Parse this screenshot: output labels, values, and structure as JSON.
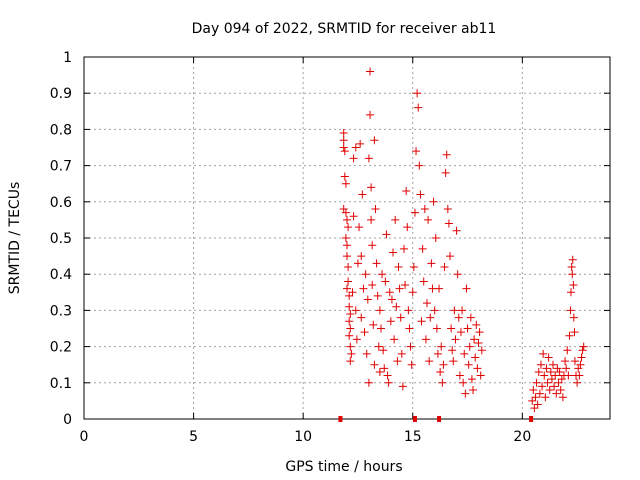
{
  "chart_data": {
    "type": "scatter",
    "title": "Day 094 of 2022, SRMTID for receiver ab11",
    "xlabel": "GPS time / hours",
    "ylabel": "SRMTID / TECUs",
    "xlim": [
      0,
      24
    ],
    "ylim": [
      0,
      1
    ],
    "grid": true,
    "marker": "+",
    "x_ticks": [
      0,
      5,
      10,
      15,
      20
    ],
    "x_tick_labels": [
      "0",
      "5",
      "10",
      "15",
      "20"
    ],
    "y_ticks": [
      0,
      0.1,
      0.2,
      0.3,
      0.4,
      0.5,
      0.6,
      0.7,
      0.8,
      0.9,
      1
    ],
    "y_tick_labels": [
      "0",
      "0.1",
      "0.2",
      "0.3",
      "0.4",
      "0.5",
      "0.6",
      "0.7",
      "0.8",
      "0.9",
      "1"
    ],
    "series": [
      {
        "name": "SRMTID",
        "color": "#e00000",
        "points": [
          [
            11.85,
            0.79
          ],
          [
            11.85,
            0.77
          ],
          [
            11.85,
            0.75
          ],
          [
            11.9,
            0.74
          ],
          [
            11.9,
            0.67
          ],
          [
            11.95,
            0.65
          ],
          [
            11.85,
            0.58
          ],
          [
            11.95,
            0.57
          ],
          [
            12.0,
            0.55
          ],
          [
            12.05,
            0.53
          ],
          [
            11.95,
            0.5
          ],
          [
            12.0,
            0.48
          ],
          [
            12.0,
            0.45
          ],
          [
            12.05,
            0.42
          ],
          [
            12.05,
            0.38
          ],
          [
            12.0,
            0.36
          ],
          [
            12.1,
            0.34
          ],
          [
            12.1,
            0.31
          ],
          [
            12.15,
            0.29
          ],
          [
            12.1,
            0.27
          ],
          [
            12.15,
            0.25
          ],
          [
            12.1,
            0.23
          ],
          [
            12.15,
            0.2
          ],
          [
            12.2,
            0.18
          ],
          [
            12.15,
            0.16
          ],
          [
            12.25,
            0.35
          ],
          [
            12.3,
            0.56
          ],
          [
            12.3,
            0.72
          ],
          [
            12.4,
            0.75
          ],
          [
            12.4,
            0.3
          ],
          [
            12.45,
            0.22
          ],
          [
            12.5,
            0.43
          ],
          [
            12.55,
            0.53
          ],
          [
            12.6,
            0.76
          ],
          [
            12.65,
            0.45
          ],
          [
            12.65,
            0.28
          ],
          [
            12.7,
            0.62
          ],
          [
            12.75,
            0.36
          ],
          [
            12.8,
            0.24
          ],
          [
            12.85,
            0.4
          ],
          [
            12.9,
            0.18
          ],
          [
            12.95,
            0.33
          ],
          [
            13.0,
            0.1
          ],
          [
            13.0,
            0.72
          ],
          [
            13.05,
            0.84
          ],
          [
            13.05,
            0.96
          ],
          [
            13.1,
            0.64
          ],
          [
            13.1,
            0.55
          ],
          [
            13.15,
            0.48
          ],
          [
            13.15,
            0.37
          ],
          [
            13.2,
            0.26
          ],
          [
            13.25,
            0.15
          ],
          [
            13.25,
            0.77
          ],
          [
            13.3,
            0.58
          ],
          [
            13.35,
            0.43
          ],
          [
            13.4,
            0.34
          ],
          [
            13.45,
            0.2
          ],
          [
            13.5,
            0.13
          ],
          [
            13.5,
            0.3
          ],
          [
            13.55,
            0.25
          ],
          [
            13.6,
            0.4
          ],
          [
            13.65,
            0.19
          ],
          [
            13.7,
            0.14
          ],
          [
            13.75,
            0.38
          ],
          [
            13.8,
            0.51
          ],
          [
            13.85,
            0.12
          ],
          [
            13.9,
            0.1
          ],
          [
            13.95,
            0.35
          ],
          [
            14.0,
            0.27
          ],
          [
            14.05,
            0.33
          ],
          [
            14.1,
            0.46
          ],
          [
            14.15,
            0.22
          ],
          [
            14.2,
            0.55
          ],
          [
            14.25,
            0.31
          ],
          [
            14.3,
            0.16
          ],
          [
            14.35,
            0.42
          ],
          [
            14.4,
            0.36
          ],
          [
            14.45,
            0.28
          ],
          [
            14.5,
            0.18
          ],
          [
            14.55,
            0.09
          ],
          [
            14.6,
            0.47
          ],
          [
            14.65,
            0.37
          ],
          [
            14.7,
            0.63
          ],
          [
            14.75,
            0.53
          ],
          [
            14.8,
            0.3
          ],
          [
            14.85,
            0.25
          ],
          [
            14.9,
            0.2
          ],
          [
            14.95,
            0.15
          ],
          [
            15.0,
            0.35
          ],
          [
            15.05,
            0.42
          ],
          [
            15.1,
            0.57
          ],
          [
            15.15,
            0.74
          ],
          [
            15.2,
            0.9
          ],
          [
            15.25,
            0.86
          ],
          [
            15.3,
            0.7
          ],
          [
            15.35,
            0.62
          ],
          [
            15.4,
            0.27
          ],
          [
            15.45,
            0.47
          ],
          [
            15.5,
            0.38
          ],
          [
            15.55,
            0.58
          ],
          [
            15.6,
            0.22
          ],
          [
            15.65,
            0.32
          ],
          [
            15.7,
            0.55
          ],
          [
            15.75,
            0.16
          ],
          [
            15.8,
            0.28
          ],
          [
            15.85,
            0.43
          ],
          [
            15.9,
            0.36
          ],
          [
            15.95,
            0.6
          ],
          [
            16.0,
            0.3
          ],
          [
            16.05,
            0.5
          ],
          [
            16.1,
            0.25
          ],
          [
            16.15,
            0.18
          ],
          [
            16.2,
            0.36
          ],
          [
            16.25,
            0.13
          ],
          [
            16.3,
            0.2
          ],
          [
            16.35,
            0.1
          ],
          [
            16.4,
            0.15
          ],
          [
            16.45,
            0.42
          ],
          [
            16.5,
            0.68
          ],
          [
            16.55,
            0.73
          ],
          [
            16.6,
            0.58
          ],
          [
            16.65,
            0.54
          ],
          [
            16.7,
            0.45
          ],
          [
            16.75,
            0.25
          ],
          [
            16.8,
            0.19
          ],
          [
            16.85,
            0.16
          ],
          [
            16.9,
            0.3
          ],
          [
            16.95,
            0.22
          ],
          [
            17.0,
            0.52
          ],
          [
            17.05,
            0.4
          ],
          [
            17.1,
            0.28
          ],
          [
            17.15,
            0.12
          ],
          [
            17.2,
            0.24
          ],
          [
            17.25,
            0.3
          ],
          [
            17.3,
            0.1
          ],
          [
            17.35,
            0.18
          ],
          [
            17.4,
            0.07
          ],
          [
            17.45,
            0.36
          ],
          [
            17.5,
            0.25
          ],
          [
            17.55,
            0.15
          ],
          [
            17.6,
            0.2
          ],
          [
            17.65,
            0.28
          ],
          [
            17.7,
            0.11
          ],
          [
            17.75,
            0.08
          ],
          [
            17.8,
            0.22
          ],
          [
            17.85,
            0.17
          ],
          [
            17.9,
            0.26
          ],
          [
            17.95,
            0.14
          ],
          [
            18.0,
            0.21
          ],
          [
            18.05,
            0.24
          ],
          [
            18.1,
            0.12
          ],
          [
            18.15,
            0.19
          ],
          [
            20.45,
            0.05
          ],
          [
            20.5,
            0.08
          ],
          [
            20.55,
            0.03
          ],
          [
            20.6,
            0.06
          ],
          [
            20.65,
            0.1
          ],
          [
            20.7,
            0.04
          ],
          [
            20.75,
            0.13
          ],
          [
            20.8,
            0.07
          ],
          [
            20.85,
            0.15
          ],
          [
            20.9,
            0.09
          ],
          [
            20.95,
            0.18
          ],
          [
            21.0,
            0.12
          ],
          [
            21.05,
            0.06
          ],
          [
            21.1,
            0.14
          ],
          [
            21.15,
            0.1
          ],
          [
            21.2,
            0.17
          ],
          [
            21.25,
            0.08
          ],
          [
            21.3,
            0.13
          ],
          [
            21.35,
            0.11
          ],
          [
            21.4,
            0.15
          ],
          [
            21.45,
            0.09
          ],
          [
            21.5,
            0.12
          ],
          [
            21.55,
            0.07
          ],
          [
            21.6,
            0.14
          ],
          [
            21.65,
            0.1
          ],
          [
            21.7,
            0.13
          ],
          [
            21.75,
            0.08
          ],
          [
            21.8,
            0.11
          ],
          [
            21.85,
            0.06
          ],
          [
            21.9,
            0.12
          ],
          [
            21.95,
            0.16
          ],
          [
            22.0,
            0.14
          ],
          [
            22.05,
            0.19
          ],
          [
            22.1,
            0.12
          ],
          [
            22.15,
            0.23
          ],
          [
            22.2,
            0.3
          ],
          [
            22.22,
            0.35
          ],
          [
            22.25,
            0.42
          ],
          [
            22.28,
            0.4
          ],
          [
            22.3,
            0.44
          ],
          [
            22.33,
            0.37
          ],
          [
            22.35,
            0.28
          ],
          [
            22.38,
            0.24
          ],
          [
            22.4,
            0.16
          ],
          [
            22.45,
            0.12
          ],
          [
            22.5,
            0.1
          ],
          [
            22.55,
            0.14
          ],
          [
            22.6,
            0.12
          ],
          [
            22.65,
            0.15
          ],
          [
            22.7,
            0.17
          ],
          [
            22.75,
            0.19
          ],
          [
            22.8,
            0.2
          ]
        ]
      },
      {
        "name": "zero-level markers",
        "color": "#e00000",
        "points": [
          [
            11.7,
            0
          ],
          [
            15.1,
            0
          ],
          [
            16.2,
            0
          ],
          [
            20.4,
            0
          ]
        ]
      }
    ]
  }
}
